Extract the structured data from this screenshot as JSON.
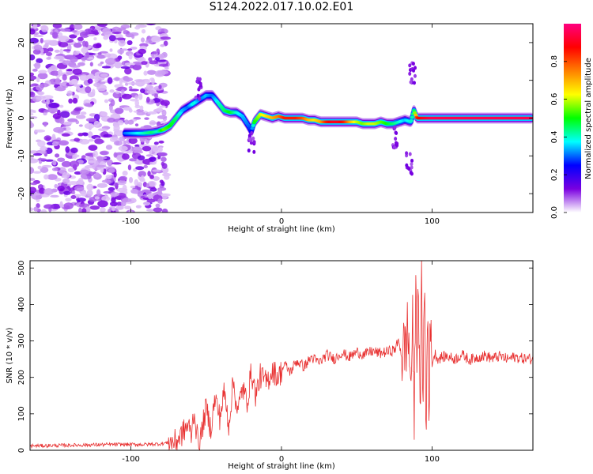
{
  "figure_title": "S124.2022.017.10.02.E01",
  "chart_data": [
    {
      "type": "heatmap",
      "title": "S124.2022.017.10.02.E01",
      "xlabel": "Height of straight line (km)",
      "ylabel": "Frequency (Hz)",
      "xlim": [
        -167,
        167
      ],
      "ylim": [
        -25,
        25
      ],
      "x_ticks": [
        -100,
        0,
        100
      ],
      "y_ticks": [
        -20,
        -10,
        0,
        10,
        20
      ],
      "colorbar": {
        "label": "Normalized spectral amplitude",
        "range": [
          0,
          1
        ],
        "ticks": [
          0.0,
          0.2,
          0.4,
          0.6,
          0.8
        ],
        "tick_labels": [
          "0.0",
          "0.2",
          "0.4",
          "0.6",
          "0.8"
        ],
        "colormap": [
          "#ffffff",
          "#7a00e0",
          "#0000ff",
          "#00ffff",
          "#00ff00",
          "#ffff00",
          "#ff8000",
          "#ff0000",
          "#ff0080"
        ]
      },
      "noise_region_x": [
        -167,
        -82
      ],
      "ridge": {
        "x": [
          -104,
          -98,
          -92,
          -86,
          -82,
          -78,
          -74,
          -70,
          -66,
          -62,
          -58,
          -54,
          -50,
          -46,
          -42,
          -38,
          -34,
          -30,
          -26,
          -22,
          -20,
          -18,
          -14,
          -10,
          -6,
          -2,
          2,
          6,
          10,
          14,
          18,
          22,
          26,
          30,
          34,
          38,
          42,
          46,
          50,
          54,
          58,
          62,
          66,
          70,
          74,
          78,
          82,
          86,
          88,
          90,
          94,
          100,
          110,
          120,
          130,
          140,
          150,
          160,
          166
        ],
        "y": [
          -4,
          -4,
          -4,
          -3.8,
          -3.5,
          -3,
          -2,
          0,
          2,
          3,
          4,
          5,
          6,
          6,
          4,
          2,
          1.5,
          1.5,
          0.5,
          -2,
          -3.5,
          -1,
          1,
          0.5,
          0,
          0.5,
          0,
          0,
          0,
          0,
          -0.5,
          -0.5,
          -1,
          -1,
          -1,
          -1,
          -1,
          -1,
          -1,
          -1.5,
          -1.5,
          -1.5,
          -1,
          -1.5,
          -1.5,
          -1,
          -0.5,
          -1,
          2,
          0,
          0,
          0,
          0,
          0,
          0,
          0,
          0,
          0,
          0
        ],
        "amplitude": [
          0.3,
          0.35,
          0.4,
          0.45,
          0.4,
          0.55,
          0.5,
          0.45,
          0.35,
          0.3,
          0.4,
          0.3,
          0.35,
          0.3,
          0.4,
          0.45,
          0.5,
          0.4,
          0.35,
          0.3,
          0.25,
          0.5,
          0.6,
          0.65,
          0.7,
          0.75,
          0.85,
          0.85,
          0.85,
          0.8,
          0.7,
          0.65,
          0.7,
          0.85,
          0.9,
          0.9,
          0.85,
          0.7,
          0.6,
          0.55,
          0.6,
          0.6,
          0.55,
          0.5,
          0.45,
          0.4,
          0.35,
          0.4,
          0.45,
          0.85,
          0.9,
          0.95,
          0.95,
          0.95,
          0.95,
          0.95,
          0.95,
          0.95,
          0.95
        ]
      },
      "grid": false
    },
    {
      "type": "line",
      "xlabel": "Height of straight line (km)",
      "ylabel": "SNR (10 * v/v)",
      "xlim": [
        -167,
        167
      ],
      "ylim": [
        0,
        520
      ],
      "x_ticks": [
        -100,
        0,
        100
      ],
      "y_ticks": [
        0,
        100,
        200,
        300,
        400,
        500
      ],
      "color": "#e83030",
      "grid": false,
      "series": [
        {
          "x": [
            -167,
            -140,
            -110,
            -90,
            -80,
            -70,
            -66,
            -62,
            -60,
            -58,
            -56,
            -54,
            -52,
            -50,
            -47,
            -44,
            -41,
            -38,
            -35,
            -32,
            -29,
            -26,
            -23,
            -20,
            -17,
            -14,
            -10,
            -6,
            -2,
            2,
            6,
            10,
            15,
            20,
            25,
            30,
            35,
            40,
            45,
            50,
            55,
            60,
            65,
            70,
            75,
            78,
            80,
            82,
            84,
            86,
            87,
            88,
            89,
            90,
            91,
            92,
            93,
            94,
            95,
            96,
            97,
            98,
            99,
            100,
            102,
            104,
            106,
            110,
            115,
            120,
            125,
            130,
            135,
            140,
            145,
            150,
            155,
            160,
            167
          ],
          "y": [
            12,
            14,
            16,
            16,
            18,
            24,
            45,
            70,
            40,
            110,
            35,
            25,
            75,
            115,
            60,
            145,
            90,
            160,
            70,
            190,
            100,
            175,
            130,
            215,
            150,
            205,
            185,
            220,
            200,
            235,
            215,
            245,
            230,
            255,
            240,
            262,
            250,
            268,
            255,
            270,
            262,
            272,
            266,
            270,
            275,
            300,
            255,
            280,
            330,
            180,
            360,
            60,
            420,
            300,
            500,
            40,
            440,
            180,
            460,
            20,
            380,
            160,
            310,
            240,
            265,
            250,
            255,
            258,
            250,
            262,
            248,
            255,
            260,
            252,
            258,
            250,
            256,
            252,
            250
          ]
        }
      ]
    }
  ]
}
